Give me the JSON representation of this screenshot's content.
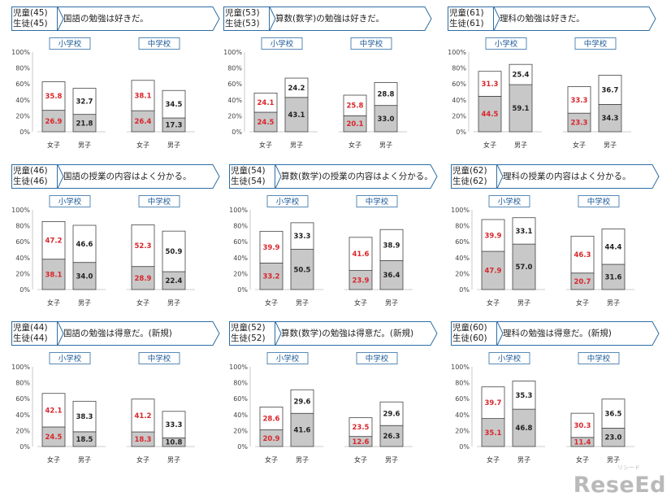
{
  "logo": {
    "text": "ReseEd",
    "sub": "リシード"
  },
  "chart_data": [
    {
      "type": "bar",
      "stacked": true,
      "code": "児童(45)\n生徒(45)",
      "title": "国語の勉強は好きだ。",
      "yticks": [
        "0%",
        "20%",
        "40%",
        "60%",
        "80%",
        "100%"
      ],
      "ylim": [
        0,
        100
      ],
      "groups": [
        {
          "label": "小学校",
          "categories": [
            "女子",
            "男子"
          ],
          "bottom": [
            26.9,
            21.8
          ],
          "top": [
            35.8,
            32.7
          ]
        },
        {
          "label": "中学校",
          "categories": [
            "女子",
            "男子"
          ],
          "bottom": [
            26.4,
            17.3
          ],
          "top": [
            38.1,
            34.5
          ]
        }
      ]
    },
    {
      "type": "bar",
      "stacked": true,
      "code": "児童(53)\n生徒(53)",
      "title": "算数(数学)の勉強は好きだ。",
      "yticks": [
        "0%",
        "20%",
        "40%",
        "60%",
        "80%",
        "100%"
      ],
      "ylim": [
        0,
        100
      ],
      "groups": [
        {
          "label": "小学校",
          "categories": [
            "女子",
            "男子"
          ],
          "bottom": [
            24.5,
            43.1
          ],
          "top": [
            24.1,
            24.2
          ]
        },
        {
          "label": "中学校",
          "categories": [
            "女子",
            "男子"
          ],
          "bottom": [
            20.1,
            33.0
          ],
          "top": [
            25.8,
            28.8
          ]
        }
      ]
    },
    {
      "type": "bar",
      "stacked": true,
      "code": "児童(61)\n生徒(61)",
      "title": "理科の勉強は好きだ。",
      "yticks": [
        "0%",
        "20%",
        "40%",
        "60%",
        "80%",
        "100%"
      ],
      "ylim": [
        0,
        100
      ],
      "groups": [
        {
          "label": "小学校",
          "categories": [
            "女子",
            "男子"
          ],
          "bottom": [
            44.5,
            59.1
          ],
          "top": [
            31.3,
            25.4
          ]
        },
        {
          "label": "中学校",
          "categories": [
            "女子",
            "男子"
          ],
          "bottom": [
            23.3,
            34.3
          ],
          "top": [
            33.3,
            36.7
          ]
        }
      ]
    },
    {
      "type": "bar",
      "stacked": true,
      "code": "児童(46)\n生徒(46)",
      "title": "国語の授業の内容はよく分かる。",
      "yticks": [
        "0%",
        "20%",
        "40%",
        "60%",
        "80%",
        "100%"
      ],
      "ylim": [
        0,
        100
      ],
      "groups": [
        {
          "label": "小学校",
          "categories": [
            "女子",
            "男子"
          ],
          "bottom": [
            38.1,
            34.0
          ],
          "top": [
            47.2,
            46.6
          ]
        },
        {
          "label": "中学校",
          "categories": [
            "女子",
            "男子"
          ],
          "bottom": [
            28.9,
            22.4
          ],
          "top": [
            52.3,
            50.9
          ]
        }
      ]
    },
    {
      "type": "bar",
      "stacked": true,
      "code": "児童(54)\n生徒(54)",
      "title": "算数(数学)の授業の内容はよく分かる。",
      "yticks": [
        "0%",
        "20%",
        "40%",
        "60%",
        "80%",
        "100%"
      ],
      "ylim": [
        0,
        100
      ],
      "groups": [
        {
          "label": "小学校",
          "categories": [
            "女子",
            "男子"
          ],
          "bottom": [
            33.2,
            50.5
          ],
          "top": [
            39.9,
            33.3
          ]
        },
        {
          "label": "中学校",
          "categories": [
            "女子",
            "男子"
          ],
          "bottom": [
            23.9,
            36.4
          ],
          "top": [
            41.6,
            38.9
          ]
        }
      ]
    },
    {
      "type": "bar",
      "stacked": true,
      "code": "児童(62)\n生徒(62)",
      "title": "理科の授業の内容はよく分かる。",
      "yticks": [
        "0%",
        "20%",
        "40%",
        "60%",
        "80%",
        "100%"
      ],
      "ylim": [
        0,
        100
      ],
      "groups": [
        {
          "label": "小学校",
          "categories": [
            "女子",
            "男子"
          ],
          "bottom": [
            47.9,
            57.0
          ],
          "top": [
            39.9,
            33.1
          ]
        },
        {
          "label": "中学校",
          "categories": [
            "女子",
            "男子"
          ],
          "bottom": [
            20.7,
            31.6
          ],
          "top": [
            46.3,
            44.4
          ]
        }
      ]
    },
    {
      "type": "bar",
      "stacked": true,
      "code": "児童(44)\n生徒(44)",
      "title": "国語の勉強は得意だ。(新規)",
      "yticks": [
        "0%",
        "20%",
        "40%",
        "60%",
        "80%",
        "100%"
      ],
      "ylim": [
        0,
        100
      ],
      "groups": [
        {
          "label": "小学校",
          "categories": [
            "女子",
            "男子"
          ],
          "bottom": [
            24.5,
            18.5
          ],
          "top": [
            42.1,
            38.3
          ]
        },
        {
          "label": "中学校",
          "categories": [
            "女子",
            "男子"
          ],
          "bottom": [
            18.3,
            10.8
          ],
          "top": [
            41.2,
            33.3
          ]
        }
      ]
    },
    {
      "type": "bar",
      "stacked": true,
      "code": "児童(52)\n生徒(52)",
      "title": "算数(数学)の勉強は得意だ。(新規)",
      "yticks": [
        "0%",
        "20%",
        "40%",
        "60%",
        "80%",
        "100%"
      ],
      "ylim": [
        0,
        100
      ],
      "groups": [
        {
          "label": "小学校",
          "categories": [
            "女子",
            "男子"
          ],
          "bottom": [
            20.9,
            41.6
          ],
          "top": [
            28.6,
            29.6
          ]
        },
        {
          "label": "中学校",
          "categories": [
            "女子",
            "男子"
          ],
          "bottom": [
            12.6,
            26.3
          ],
          "top": [
            23.5,
            29.6
          ]
        }
      ]
    },
    {
      "type": "bar",
      "stacked": true,
      "code": "児童(60)\n生徒(60)",
      "title": "理科の勉強は得意だ。(新規)",
      "yticks": [
        "0%",
        "20%",
        "40%",
        "60%",
        "80%",
        "100%"
      ],
      "ylim": [
        0,
        100
      ],
      "groups": [
        {
          "label": "小学校",
          "categories": [
            "女子",
            "男子"
          ],
          "bottom": [
            35.1,
            46.8
          ],
          "top": [
            39.7,
            35.3
          ]
        },
        {
          "label": "中学校",
          "categories": [
            "女子",
            "男子"
          ],
          "bottom": [
            11.4,
            23.0
          ],
          "top": [
            30.3,
            36.5
          ]
        }
      ]
    }
  ]
}
